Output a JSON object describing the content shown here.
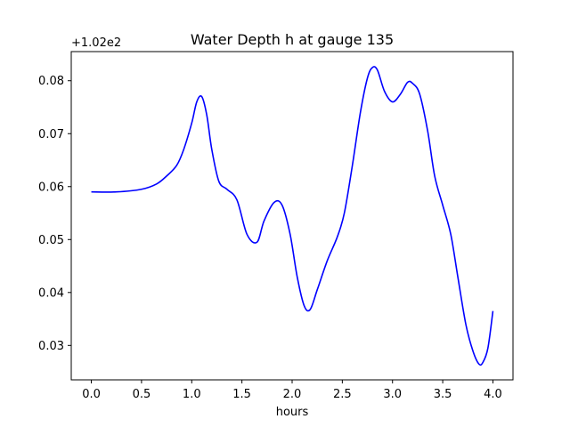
{
  "chart_data": {
    "type": "line",
    "title": "Water Depth h at gauge 135",
    "xlabel": "hours",
    "ylabel": "",
    "offset_label": "+1.02e2",
    "xlim": [
      -0.2,
      4.2
    ],
    "ylim": [
      0.0235,
      0.0855
    ],
    "xticks": [
      "0.0",
      "0.5",
      "1.0",
      "1.5",
      "2.0",
      "2.5",
      "3.0",
      "3.5",
      "4.0"
    ],
    "yticks": [
      "0.03",
      "0.04",
      "0.05",
      "0.06",
      "0.07",
      "0.08"
    ],
    "grid": false,
    "line_color": "#0000ff",
    "series": [
      {
        "x": [
          0.0,
          0.25,
          0.5,
          0.65,
          0.75,
          0.85,
          0.92,
          1.0,
          1.05,
          1.1,
          1.15,
          1.2,
          1.27,
          1.35,
          1.45,
          1.55,
          1.65,
          1.72,
          1.82,
          1.9,
          1.98,
          2.05,
          2.12,
          2.18,
          2.25,
          2.35,
          2.45,
          2.52,
          2.6,
          2.68,
          2.75,
          2.8,
          2.85,
          2.92,
          3.0,
          3.08,
          3.15,
          3.2,
          3.27,
          3.35,
          3.42,
          3.5,
          3.58,
          3.65,
          3.73,
          3.8,
          3.86,
          3.9,
          3.95,
          4.0
        ],
        "y": [
          0.059,
          0.059,
          0.0595,
          0.0605,
          0.062,
          0.064,
          0.067,
          0.072,
          0.076,
          0.077,
          0.0735,
          0.067,
          0.061,
          0.0595,
          0.0575,
          0.051,
          0.0495,
          0.0535,
          0.057,
          0.0565,
          0.051,
          0.043,
          0.0375,
          0.0368,
          0.0405,
          0.046,
          0.0505,
          0.055,
          0.064,
          0.074,
          0.0805,
          0.0825,
          0.082,
          0.078,
          0.076,
          0.0775,
          0.0797,
          0.0795,
          0.0775,
          0.0705,
          0.062,
          0.0565,
          0.051,
          0.043,
          0.034,
          0.029,
          0.0265,
          0.0268,
          0.0295,
          0.0365
        ]
      }
    ]
  }
}
